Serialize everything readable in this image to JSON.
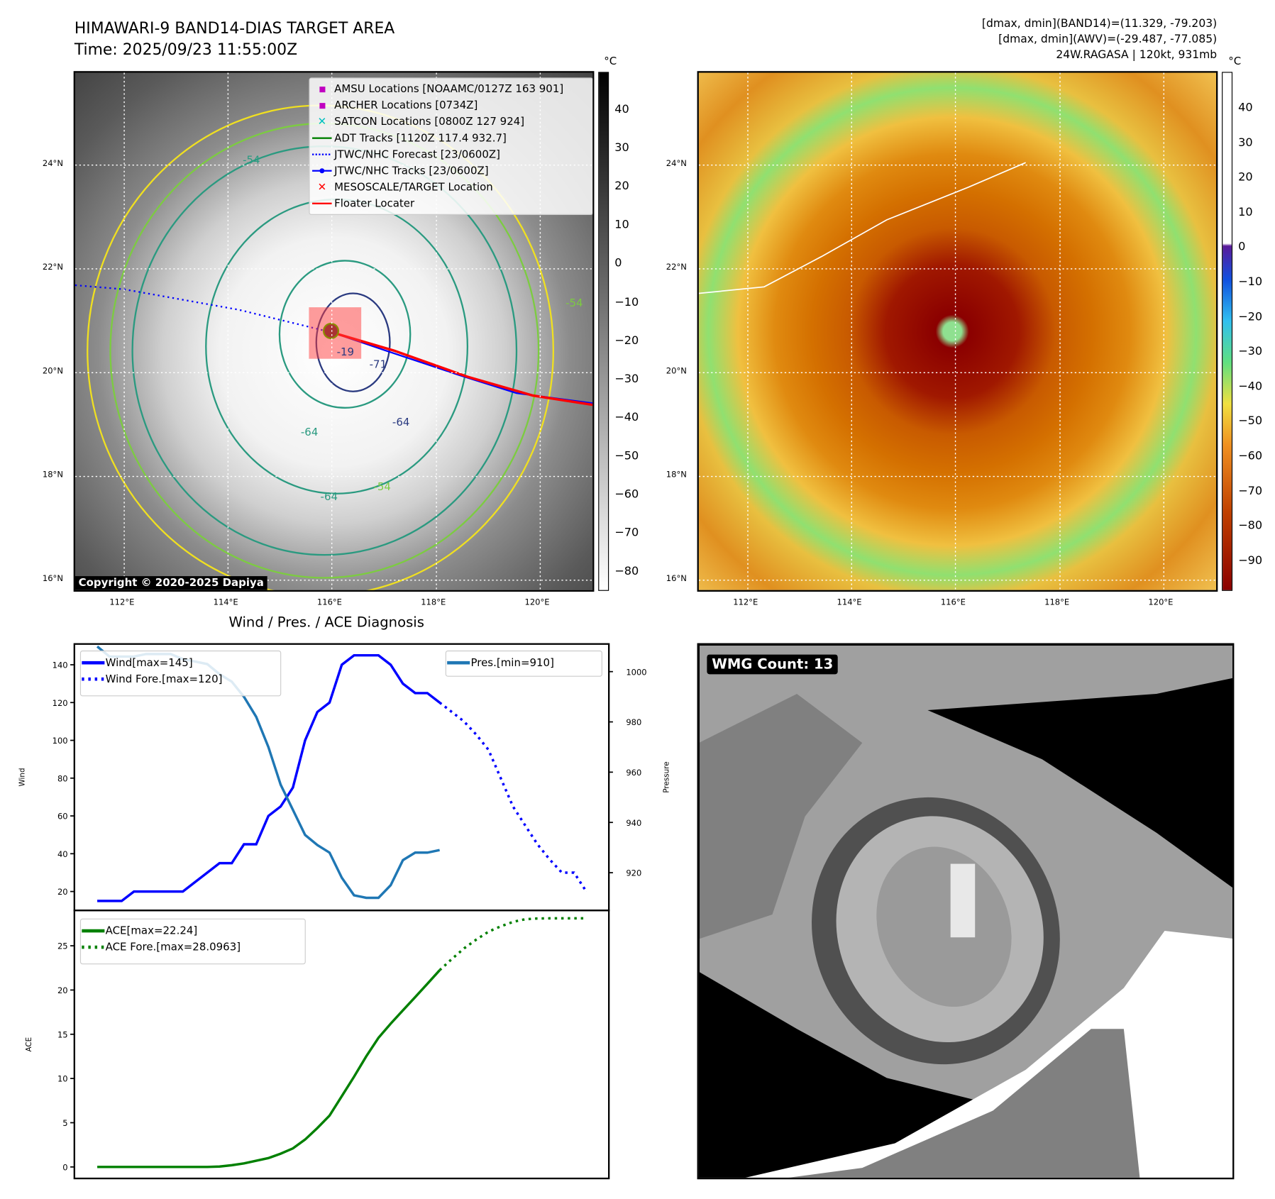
{
  "header": {
    "title": "HIMAWARI-9 BAND14-DIAS TARGET AREA",
    "time": "Time: 2025/09/23 11:55:00Z",
    "info": [
      "[dmax, dmin](BAND14)=(11.329, -79.203)",
      "[dmax, dmin](AWV)=(-29.487, -77.085)",
      "24W.RAGASA | 120kt, 931mb"
    ]
  },
  "map": {
    "lat_ticks": [
      "24°N",
      "22°N",
      "20°N",
      "18°N",
      "16°N"
    ],
    "lon_ticks": [
      "112°E",
      "114°E",
      "116°E",
      "118°E",
      "120°E"
    ],
    "copyright": "Copyright © 2020-2025 Dapiya",
    "contour_labels": [
      "-54",
      "-64",
      "-64",
      "-64",
      "-64",
      "-54",
      "-64",
      "-71",
      "-19",
      "-54"
    ],
    "legend": [
      {
        "label": "AMSU Locations [NOAAMC/0127Z 163 901]",
        "color": "#c000c0",
        "icon": "square-marker"
      },
      {
        "label": "ARCHER Locations [0734Z]",
        "color": "#c000c0",
        "icon": "square-marker"
      },
      {
        "label": "SATCON Locations [0800Z 127 924]",
        "color": "#00c0c0",
        "icon": "x-marker"
      },
      {
        "label": "ADT Tracks [1120Z 117.4 932.7]",
        "color": "#008000",
        "icon": "solid-line"
      },
      {
        "label": "JTWC/NHC Forecast [23/0600Z]",
        "color": "#0000ff",
        "icon": "dotted-line"
      },
      {
        "label": "JTWC/NHC Tracks [23/0600Z]",
        "color": "#0000ff",
        "icon": "line-dot"
      },
      {
        "label": "MESOSCALE/TARGET Location",
        "color": "#ff0000",
        "icon": "x-marker"
      },
      {
        "label": "Floater Locater",
        "color": "#ff0000",
        "icon": "solid-line"
      }
    ]
  },
  "colorbar1": {
    "unit": "°C",
    "ticks": [
      "40",
      "30",
      "20",
      "10",
      "0",
      "−10",
      "−20",
      "−30",
      "−40",
      "−50",
      "−60",
      "−70",
      "−80"
    ]
  },
  "colorbar2": {
    "unit": "°C",
    "ticks": [
      "40",
      "30",
      "20",
      "10",
      "0",
      "−10",
      "−20",
      "−30",
      "−40",
      "−50",
      "−60",
      "−70",
      "−80",
      "−90"
    ]
  },
  "wmg": {
    "label": "WMG Count: 13"
  },
  "chart_data": [
    {
      "type": "line",
      "title": "Wind / Pres. / ACE Diagnosis",
      "ylabel": "Wind",
      "ylabel_right": "Pressure",
      "ylim": [
        10,
        151
      ],
      "ylim_right": [
        905,
        1011
      ],
      "yticks": [
        20,
        40,
        60,
        80,
        100,
        120,
        140
      ],
      "yticks_right": [
        920,
        940,
        960,
        980,
        1000
      ],
      "series": [
        {
          "name": "Wind[max=145]",
          "color": "#0000ff",
          "style": "solid",
          "axis": "left",
          "x_start": 0,
          "values": [
            15,
            15,
            15,
            20,
            20,
            20,
            20,
            20,
            25,
            30,
            35,
            35,
            45,
            45,
            60,
            65,
            75,
            100,
            115,
            120,
            140,
            145,
            145,
            145,
            140,
            130,
            125,
            125,
            120
          ]
        },
        {
          "name": "Wind Fore.[max=120]",
          "color": "#0000ff",
          "style": "dotted",
          "axis": "left",
          "x_start": 28,
          "values": [
            120,
            115,
            110,
            103,
            95,
            80,
            65,
            55,
            45,
            37,
            30,
            30,
            20
          ]
        },
        {
          "name": "Pres.[min=910]",
          "color": "#1f77b4",
          "style": "solid",
          "axis": "right",
          "x_start": 0,
          "values": [
            1010,
            1006,
            1006,
            1006,
            1007,
            1007,
            1007,
            1005,
            1004,
            1003,
            999,
            996,
            990,
            982,
            970,
            955,
            945,
            935,
            931,
            928,
            918,
            911,
            910,
            910,
            915,
            925,
            928,
            928,
            929
          ]
        }
      ]
    },
    {
      "type": "line",
      "ylabel": "ACE",
      "ylim": [
        -1.3,
        29
      ],
      "yticks": [
        0,
        5,
        10,
        15,
        20,
        25
      ],
      "series": [
        {
          "name": "ACE[max=22.24]",
          "color": "#008000",
          "style": "solid",
          "x_start": 0,
          "values": [
            0,
            0,
            0,
            0,
            0,
            0,
            0,
            0,
            0,
            0,
            0.05,
            0.2,
            0.4,
            0.7,
            1.0,
            1.5,
            2.1,
            3.1,
            4.4,
            5.8,
            8.0,
            10.2,
            12.5,
            14.6,
            16.2,
            17.7,
            19.2,
            20.7,
            22.24
          ]
        },
        {
          "name": "ACE Fore.[max=28.0963]",
          "color": "#008000",
          "style": "dotted",
          "x_start": 28,
          "values": [
            22.24,
            23.5,
            24.7,
            25.7,
            26.6,
            27.2,
            27.7,
            28.0,
            28.09,
            28.1,
            28.1,
            28.1,
            28.1
          ]
        }
      ]
    }
  ]
}
